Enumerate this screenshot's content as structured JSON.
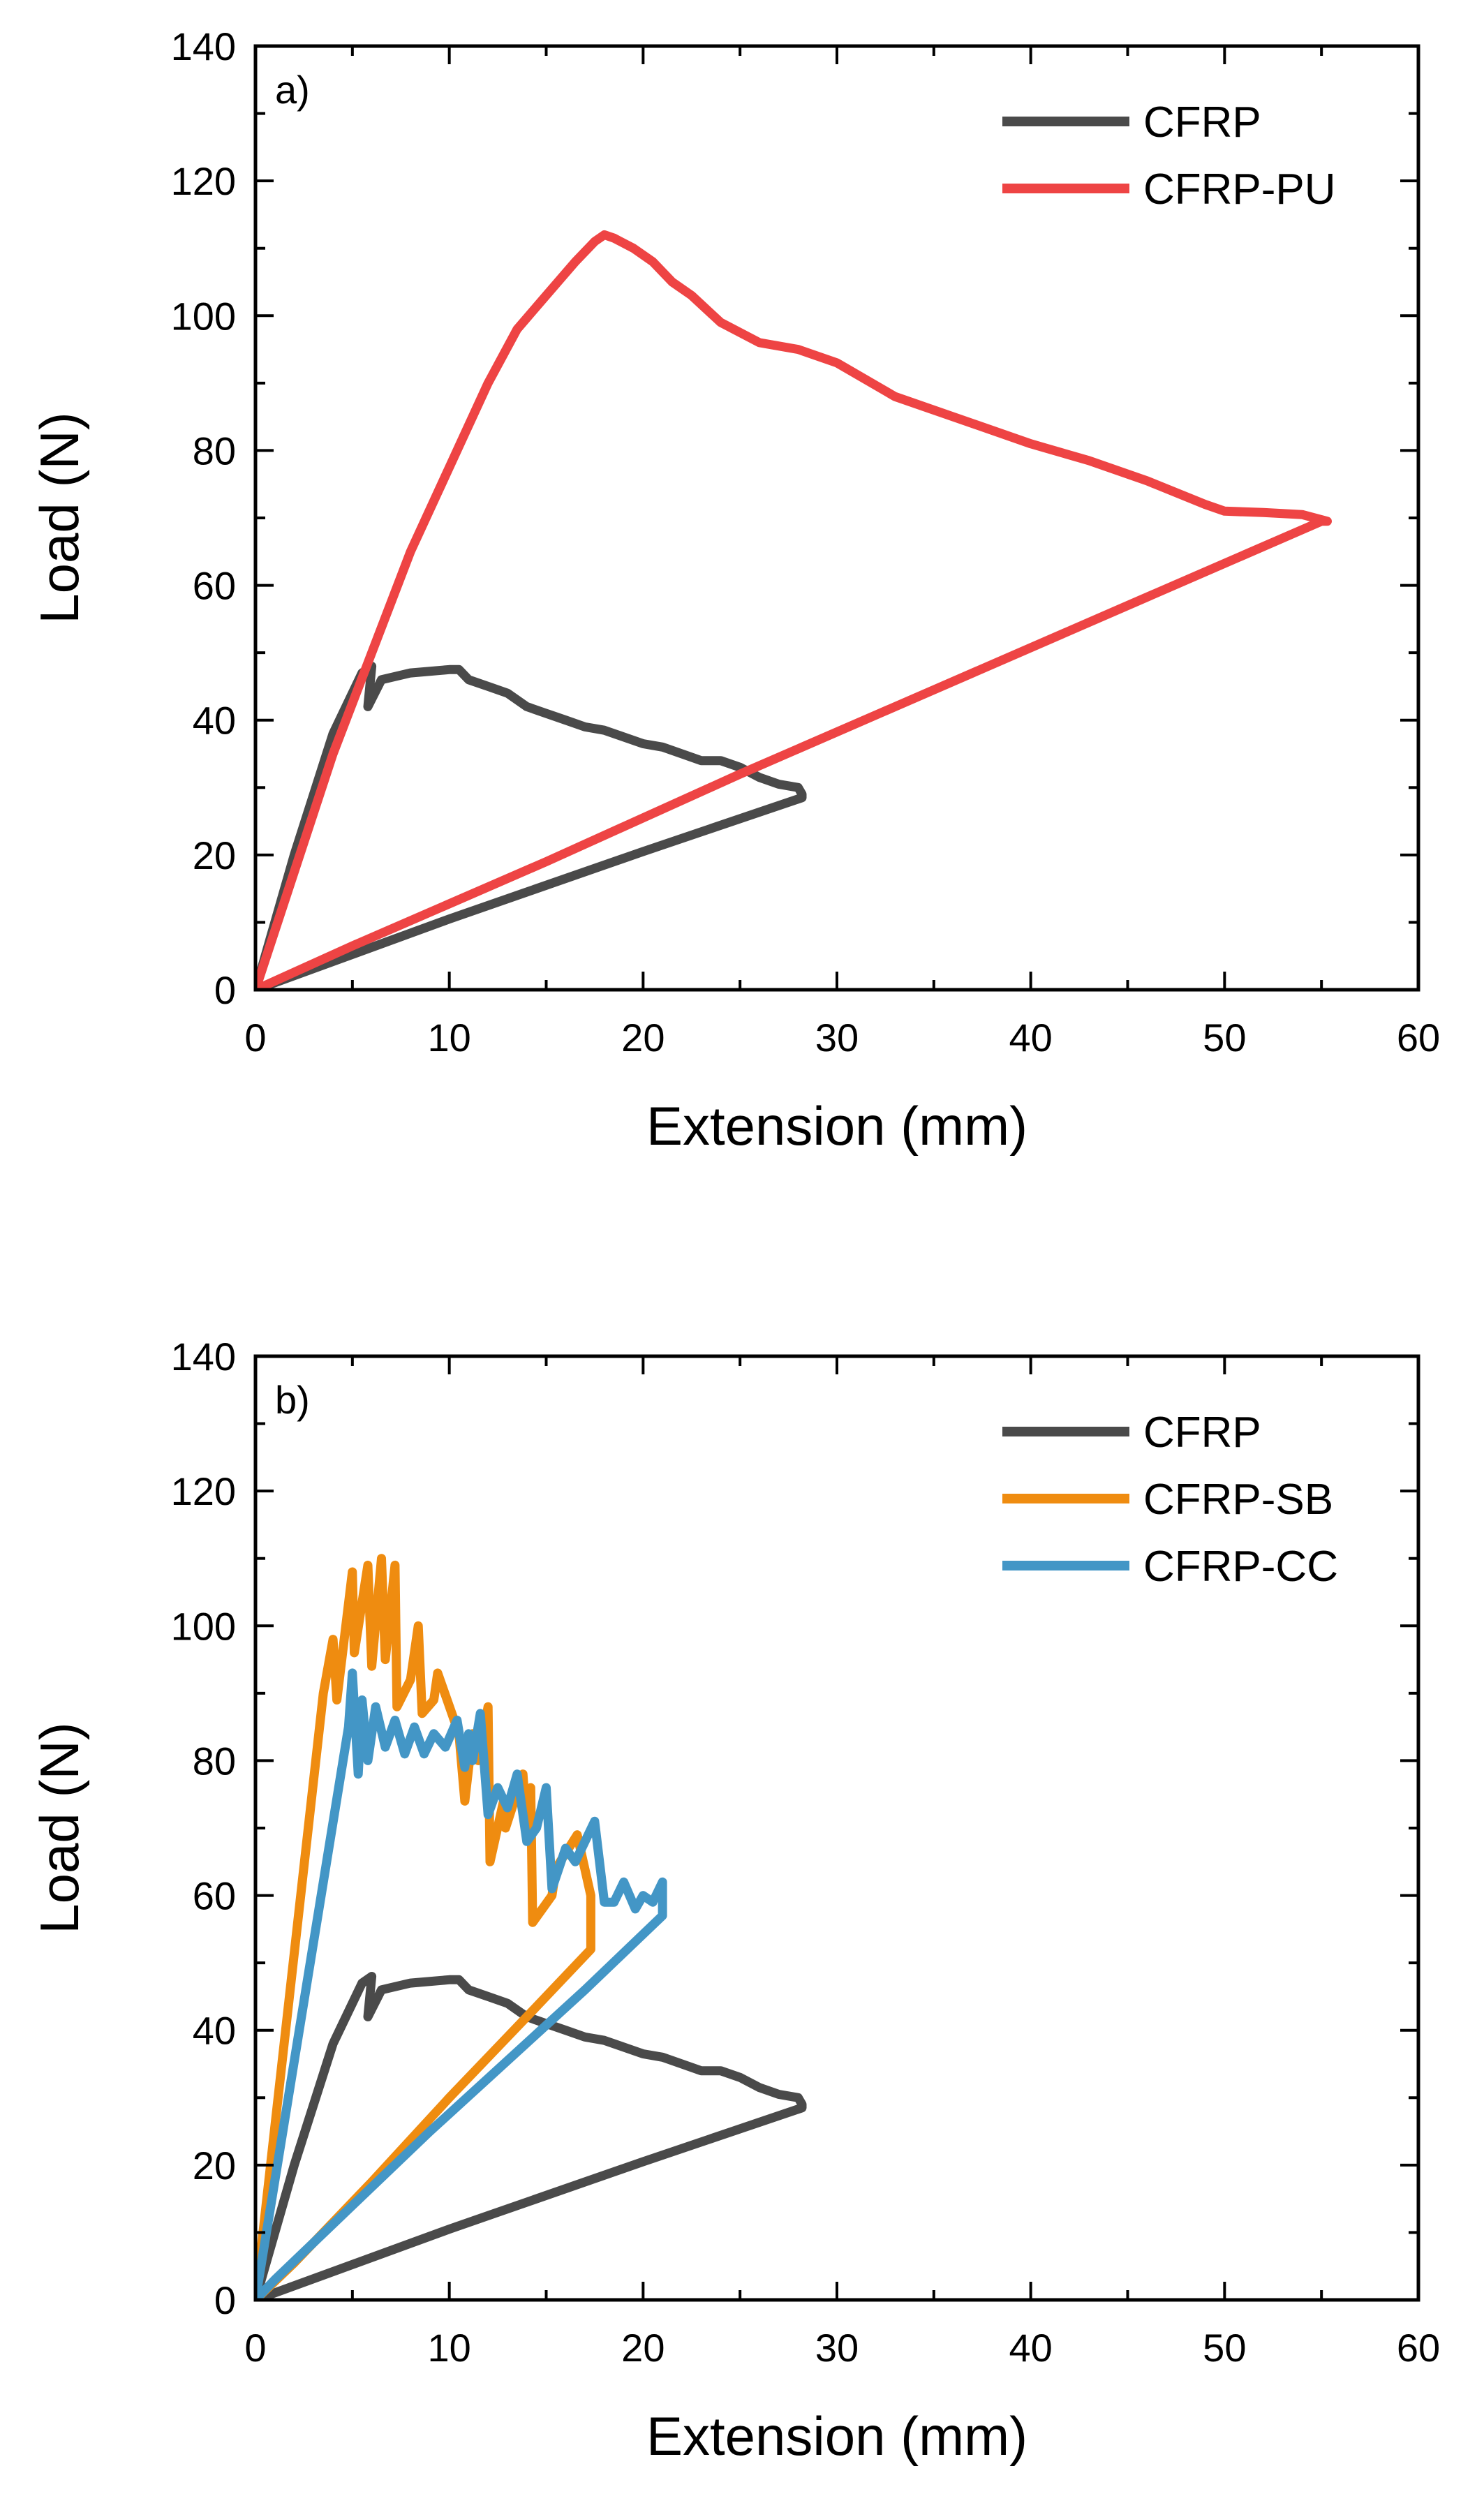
{
  "colors": {
    "CFRP": "#4a4a4a",
    "CFRP-PU": "#ee4444",
    "CFRP-SB": "#ef8c10",
    "CFRP-CC": "#4396c6"
  },
  "chart_data": [
    {
      "type": "line",
      "panel_label": "a)",
      "title": "",
      "xlabel": "Extension (mm)",
      "ylabel": "Load (N)",
      "xlim": [
        0,
        60
      ],
      "ylim": [
        0,
        140
      ],
      "xticks": [
        0,
        10,
        20,
        30,
        40,
        50,
        60
      ],
      "yticks": [
        0,
        20,
        40,
        60,
        80,
        100,
        120,
        140
      ],
      "legend_position": "top-right",
      "series": [
        {
          "name": "CFRP",
          "x": [
            0,
            2,
            4,
            5.5,
            6,
            5.8,
            6.5,
            8,
            10,
            10.5,
            11,
            12,
            13,
            14,
            15,
            16,
            17,
            18,
            19,
            20,
            21,
            22,
            23,
            24,
            25,
            26,
            27,
            28,
            28.2,
            28.2,
            20,
            10,
            0
          ],
          "y": [
            0,
            20,
            38,
            47,
            48,
            42,
            46,
            47,
            47.5,
            47.5,
            46,
            45,
            44,
            42,
            41,
            40,
            39,
            38.5,
            37.5,
            36.5,
            36,
            35,
            34,
            34,
            33,
            31.5,
            30.5,
            30,
            29,
            28.5,
            20.5,
            10.5,
            0
          ]
        },
        {
          "name": "CFRP-PU",
          "x": [
            0,
            4,
            8,
            12,
            13.5,
            15,
            16.5,
            17.5,
            18,
            18.5,
            19.5,
            20.5,
            21.5,
            22.5,
            24,
            26,
            28,
            30,
            33,
            36,
            40,
            43,
            46,
            49,
            50,
            52,
            54,
            55.3,
            55,
            45,
            35,
            25,
            15,
            5,
            0
          ],
          "y": [
            0,
            35,
            65,
            90,
            98,
            103,
            108,
            111,
            112,
            111.5,
            110,
            108,
            105,
            103,
            99,
            96,
            95,
            93,
            88,
            85,
            81,
            78.5,
            75.5,
            72,
            71,
            70.8,
            70.5,
            69.5,
            69.5,
            57,
            44.5,
            32,
            19,
            6.5,
            0
          ]
        }
      ]
    },
    {
      "type": "line",
      "panel_label": "b)",
      "title": "",
      "xlabel": "Extension (mm)",
      "ylabel": "Load (N)",
      "xlim": [
        0,
        60
      ],
      "ylim": [
        0,
        140
      ],
      "xticks": [
        0,
        10,
        20,
        30,
        40,
        50,
        60
      ],
      "yticks": [
        0,
        20,
        40,
        60,
        80,
        100,
        120,
        140
      ],
      "legend_position": "top-right",
      "series": [
        {
          "name": "CFRP",
          "x": [
            0,
            2,
            4,
            5.5,
            6,
            5.8,
            6.5,
            8,
            10,
            10.5,
            11,
            12,
            13,
            14,
            15,
            16,
            17,
            18,
            19,
            20,
            21,
            22,
            23,
            24,
            25,
            26,
            27,
            28,
            28.2,
            28.2,
            20,
            10,
            0
          ],
          "y": [
            0,
            20,
            38,
            47,
            48,
            42,
            46,
            47,
            47.5,
            47.5,
            46,
            45,
            44,
            42,
            41,
            40,
            39,
            38.5,
            37.5,
            36.5,
            36,
            35,
            34,
            34,
            33,
            31.5,
            30.5,
            30,
            29,
            28.5,
            20.5,
            10.5,
            0
          ]
        },
        {
          "name": "CFRP-SB",
          "x": [
            0,
            3.5,
            4,
            4.2,
            5,
            5.1,
            5.8,
            6,
            6.5,
            6.7,
            7.2,
            7.3,
            8,
            8.4,
            8.6,
            9.2,
            9.4,
            10.5,
            10.8,
            11.2,
            11.5,
            12,
            12.1,
            12.8,
            12.9,
            13.8,
            14,
            14.2,
            14.3,
            15.3,
            15.5,
            16.6,
            17.3,
            17.3,
            14,
            10,
            6,
            2,
            0
          ],
          "y": [
            0,
            90,
            98,
            89,
            108,
            96,
            109,
            94,
            110,
            95,
            109,
            88,
            92,
            100,
            87,
            89,
            93,
            84,
            74,
            84,
            80,
            88,
            65,
            74,
            70,
            78,
            70,
            76,
            56,
            60,
            64,
            69,
            60,
            52,
            42,
            30,
            17.5,
            5.5,
            0
          ]
        },
        {
          "name": "CFRP-CC",
          "x": [
            0,
            4.8,
            5,
            5.3,
            5.5,
            5.8,
            6.2,
            6.7,
            7.2,
            7.7,
            8.2,
            8.7,
            9.2,
            9.8,
            10.4,
            10.8,
            11,
            11.2,
            11.6,
            12,
            12.5,
            13,
            13.5,
            14,
            14.5,
            15,
            15.3,
            16,
            16.5,
            17.5,
            18,
            18.5,
            19,
            19.6,
            20,
            20.5,
            21,
            21,
            17,
            13,
            9,
            5,
            1,
            0
          ],
          "y": [
            0,
            85,
            93,
            78,
            89,
            80,
            88,
            82,
            86,
            81,
            85,
            81,
            84,
            82,
            86,
            79,
            84,
            80,
            87,
            72,
            76,
            73,
            78,
            68,
            70,
            76,
            61,
            67,
            65,
            71,
            59,
            59,
            62,
            58,
            60,
            59,
            62,
            57,
            46,
            35.5,
            25,
            14,
            3,
            0
          ]
        }
      ]
    }
  ]
}
